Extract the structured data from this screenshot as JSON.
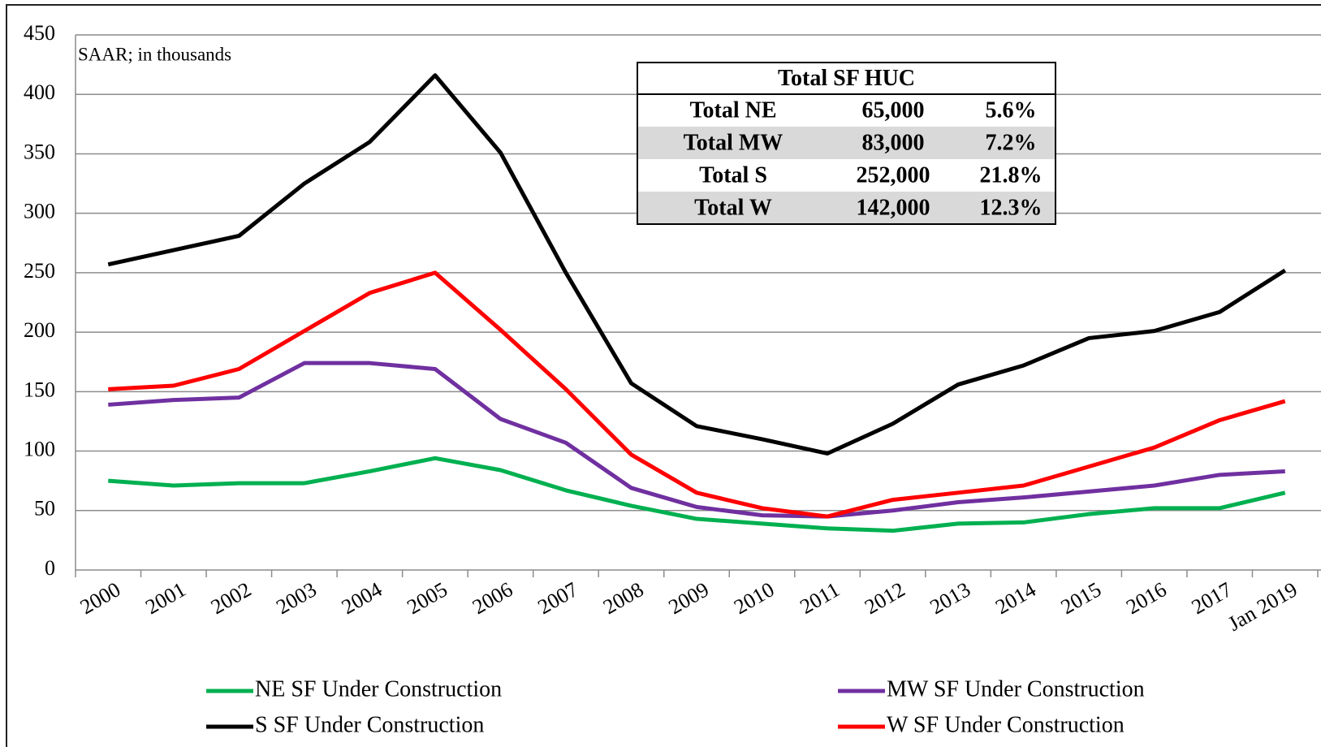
{
  "chart_data": {
    "type": "line",
    "annotation": "SAAR; in thousands",
    "categories": [
      "2000",
      "2001",
      "2002",
      "2003",
      "2004",
      "2005",
      "2006",
      "2007",
      "2008",
      "2009",
      "2010",
      "2011",
      "2012",
      "2013",
      "2014",
      "2015",
      "2016",
      "2017",
      "Jan 2019"
    ],
    "series": [
      {
        "name": "NE SF Under Construction",
        "color": "#00b050",
        "values": [
          75,
          71,
          73,
          73,
          83,
          94,
          84,
          67,
          54,
          43,
          39,
          35,
          33,
          39,
          40,
          47,
          52,
          52,
          65
        ]
      },
      {
        "name": "MW SF Under Construction",
        "color": "#7030a0",
        "values": [
          139,
          143,
          145,
          174,
          174,
          169,
          127,
          107,
          69,
          53,
          46,
          45,
          50,
          57,
          61,
          66,
          71,
          80,
          83
        ]
      },
      {
        "name": "S SF Under Construction",
        "color": "#000000",
        "values": [
          257,
          269,
          281,
          325,
          360,
          416,
          351,
          250,
          157,
          121,
          110,
          98,
          123,
          156,
          172,
          195,
          201,
          217,
          252
        ]
      },
      {
        "name": "W SF Under Construction",
        "color": "#ff0000",
        "values": [
          152,
          155,
          169,
          201,
          233,
          250,
          202,
          152,
          97,
          65,
          52,
          45,
          59,
          65,
          71,
          87,
          103,
          126,
          142
        ]
      }
    ],
    "ylim": [
      0,
      450
    ],
    "yticks": [
      0,
      50,
      100,
      150,
      200,
      250,
      300,
      350,
      400,
      450
    ],
    "grid": true,
    "table": {
      "title": "Total SF HUC",
      "rows": [
        [
          "Total NE",
          "65,000",
          "5.6%"
        ],
        [
          "Total MW",
          "83,000",
          "7.2%"
        ],
        [
          "Total S",
          "252,000",
          "21.8%"
        ],
        [
          "Total W",
          "142,000",
          "12.3%"
        ]
      ]
    }
  }
}
